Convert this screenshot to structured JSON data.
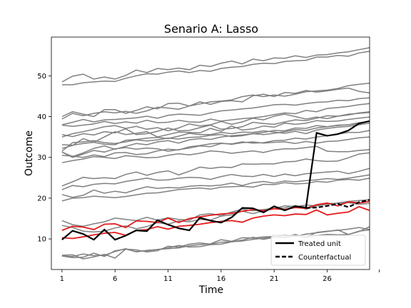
{
  "chart_data": {
    "type": "line",
    "title": "Senario A: Lasso",
    "xlabel": "Time",
    "ylabel": "Outcome",
    "xlim": [
      0,
      30
    ],
    "ylim": [
      2.5,
      59.5
    ],
    "xticks": [
      1,
      6,
      11,
      16,
      21,
      26
    ],
    "yticks": [
      10,
      20,
      30,
      40,
      50
    ],
    "legend": {
      "location": "lower right",
      "entries": [
        {
          "label": "Treated unit",
          "style": "solid",
          "color": "#000000"
        },
        {
          "label": "Counterfactual",
          "style": "dashed",
          "color": "#000000"
        }
      ]
    },
    "colors": {
      "controls": "#808080",
      "treated_pre": "#e31a1c",
      "treated": "#000000"
    },
    "x": [
      1,
      2,
      3,
      4,
      5,
      6,
      7,
      8,
      9,
      10,
      11,
      12,
      13,
      14,
      15,
      16,
      17,
      18,
      19,
      20,
      21,
      22,
      23,
      24,
      25,
      26,
      27,
      28,
      29,
      30
    ],
    "treated_unit": [
      9.8,
      12.0,
      11.2,
      9.8,
      12.3,
      9.8,
      10.8,
      12.1,
      11.9,
      14.6,
      13.5,
      12.6,
      12.1,
      15.2,
      14.5,
      14.0,
      15.3,
      17.6,
      17.5,
      16.5,
      18.0,
      17.0,
      18.0,
      17.7,
      36.0,
      35.3,
      35.7,
      36.6,
      38.3,
      38.9
    ],
    "counterfactual": [
      null,
      null,
      null,
      null,
      null,
      null,
      null,
      null,
      null,
      null,
      null,
      null,
      null,
      null,
      null,
      null,
      null,
      null,
      null,
      null,
      null,
      null,
      null,
      17.6,
      17.7,
      18.1,
      18.6,
      17.8,
      19.0,
      19.6
    ],
    "red_series": [
      [
        12.1,
        13.1,
        12.9,
        12.3,
        13.6,
        13.7,
        12.8,
        14.4,
        14.3,
        14.0,
        15.1,
        14.0,
        15.0,
        15.4,
        15.8,
        16.1,
        16.3,
        16.8,
        17.2,
        16.9,
        17.4,
        17.2,
        17.7,
        17.5,
        18.4,
        18.8,
        18.1,
        19.1,
        18.8,
        19.2
      ],
      [
        10.3,
        10.1,
        10.5,
        11.0,
        11.4,
        11.6,
        10.9,
        12.1,
        12.3,
        13.0,
        12.4,
        13.1,
        13.3,
        13.6,
        14.0,
        14.3,
        14.5,
        14.1,
        15.1,
        15.6,
        15.9,
        15.7,
        16.1,
        16.0,
        17.1,
        15.9,
        16.3,
        16.6,
        17.9,
        17.0
      ]
    ],
    "control_series": [
      [
        48.5,
        49.9,
        50.4,
        49.2,
        49.7,
        49.2,
        50.1,
        51.4,
        50.8,
        51.8,
        51.5,
        51.9,
        51.5,
        52.6,
        52.3,
        53.1,
        53.6,
        52.9,
        54.1,
        53.7,
        54.4,
        54.3,
        54.9,
        54.5,
        55.1,
        55.2,
        55.6,
        55.9,
        56.4,
        56.9
      ],
      [
        47.8,
        47.8,
        48.3,
        48.5,
        48.7,
        48.6,
        49.4,
        50.0,
        50.5,
        50.4,
        50.9,
        51.2,
        50.8,
        51.3,
        51.1,
        51.8,
        52.1,
        52.3,
        52.8,
        53.1,
        53.0,
        53.5,
        53.7,
        53.8,
        54.6,
        54.6,
        55.0,
        54.8,
        55.6,
        56.0
      ],
      [
        40.0,
        41.2,
        40.6,
        40.0,
        41.7,
        41.7,
        40.8,
        41.5,
        42.4,
        41.9,
        43.2,
        43.3,
        42.6,
        43.6,
        43.0,
        43.7,
        43.9,
        43.6,
        45.1,
        45.5,
        44.9,
        45.9,
        45.7,
        46.4,
        46.0,
        46.3,
        46.7,
        47.0,
        46.2,
        45.8
      ],
      [
        39.4,
        40.8,
        40.2,
        40.8,
        41.2,
        40.9,
        41.3,
        40.8,
        41.4,
        42.3,
        42.1,
        41.8,
        42.6,
        43.1,
        43.6,
        43.8,
        44.1,
        44.9,
        45.3,
        44.9,
        45.3,
        45.0,
        45.5,
        46.1,
        46.3,
        46.5,
        46.9,
        47.6,
        47.9,
        48.2
      ],
      [
        38.0,
        38.6,
        39.3,
        38.7,
        39.2,
        39.3,
        39.5,
        39.7,
        40.1,
        39.6,
        40.3,
        40.6,
        40.5,
        40.3,
        40.9,
        41.4,
        41.6,
        41.9,
        42.1,
        42.5,
        42.9,
        43.0,
        42.8,
        43.2,
        43.5,
        43.6,
        44.0,
        43.9,
        44.4,
        44.6
      ],
      [
        37.9,
        37.6,
        37.9,
        38.2,
        38.8,
        38.3,
        38.7,
        38.4,
        39.1,
        38.5,
        38.6,
        39.1,
        38.7,
        38.6,
        39.4,
        38.9,
        39.2,
        39.5,
        39.7,
        40.0,
        40.5,
        40.9,
        40.7,
        41.5,
        41.2,
        42.0,
        42.2,
        42.5,
        42.9,
        43.2
      ],
      [
        35.6,
        35.1,
        35.8,
        35.5,
        36.3,
        36.0,
        37.0,
        35.6,
        35.8,
        36.4,
        37.2,
        36.5,
        36.6,
        37.3,
        37.9,
        36.9,
        37.1,
        37.5,
        38.6,
        38.3,
        38.1,
        38.7,
        39.2,
        39.0,
        39.6,
        40.2,
        40.1,
        40.4,
        40.9,
        41.2
      ],
      [
        35.0,
        35.8,
        36.3,
        36.9,
        37.5,
        37.8,
        37.1,
        37.6,
        36.9,
        37.3,
        36.5,
        37.2,
        38.2,
        37.7,
        38.0,
        38.8,
        38.1,
        38.7,
        39.6,
        39.2,
        40.1,
        40.6,
        40.0,
        39.4,
        39.9,
        39.5,
        40.1,
        40.6,
        40.8,
        41.0
      ],
      [
        32.2,
        32.9,
        34.6,
        33.7,
        35.0,
        36.3,
        35.6,
        35.9,
        36.3,
        35.0,
        35.6,
        36.2,
        36.1,
        36.0,
        37.1,
        36.4,
        37.7,
        36.7,
        37.0,
        37.7,
        37.4,
        38.4,
        38.1,
        38.4,
        39.0,
        38.8,
        38.9,
        39.3,
        39.6,
        39.9
      ],
      [
        31.5,
        33.6,
        33.8,
        34.1,
        33.6,
        33.4,
        33.8,
        34.3,
        34.0,
        34.3,
        34.7,
        34.5,
        34.9,
        35.0,
        35.4,
        35.6,
        35.1,
        35.3,
        35.8,
        36.1,
        36.6,
        36.5,
        37.2,
        37.1,
        37.8,
        37.5,
        37.9,
        38.0,
        38.5,
        38.8
      ],
      [
        31.3,
        30.2,
        31.1,
        32.2,
        32.8,
        32.0,
        32.7,
        33.4,
        33.1,
        33.8,
        34.1,
        33.5,
        34.3,
        34.6,
        34.4,
        35.0,
        35.3,
        35.5,
        35.8,
        35.6,
        35.9,
        36.3,
        36.8,
        36.6,
        37.2,
        37.5,
        37.8,
        38.0,
        38.3,
        38.8
      ],
      [
        33.1,
        33.0,
        33.4,
        33.7,
        33.2,
        33.1,
        34.2,
        34.4,
        34.7,
        34.9,
        34.6,
        35.2,
        35.9,
        35.6,
        35.6,
        36.1,
        35.8,
        36.2,
        36.1,
        36.5,
        36.2,
        35.9,
        36.4,
        35.8,
        36.7,
        37.1,
        37.4,
        37.6,
        38.0,
        38.4
      ],
      [
        31.3,
        30.0,
        30.8,
        31.7,
        31.3,
        32.1,
        32.4,
        32.0,
        32.3,
        32.1,
        31.5,
        31.9,
        32.3,
        32.8,
        32.6,
        33.4,
        33.3,
        33.8,
        33.5,
        33.6,
        34.1,
        34.2,
        34.7,
        34.5,
        35.0,
        35.3,
        35.7,
        36.1,
        36.1,
        36.6
      ],
      [
        30.5,
        30.3,
        30.0,
        30.6,
        30.2,
        31.1,
        31.2,
        30.7,
        30.9,
        31.6,
        32.0,
        31.8,
        32.6,
        32.9,
        33.3,
        33.5,
        33.2,
        33.6,
        33.8,
        33.5,
        33.7,
        33.8,
        33.4,
        33.9,
        33.5,
        33.9,
        34.0,
        34.4,
        34.8,
        35.0
      ],
      [
        28.7,
        29.2,
        29.6,
        30.2,
        30.0,
        29.7,
        30.4,
        30.2,
        29.9,
        30.0,
        30.5,
        30.9,
        30.6,
        31.0,
        31.6,
        31.4,
        31.0,
        31.3,
        31.6,
        31.2,
        31.8,
        32.1,
        32.1,
        32.4,
        32.7,
        31.5,
        31.4,
        31.4,
        31.7,
        31.9
      ],
      [
        23.0,
        24.0,
        25.1,
        24.8,
        25.0,
        24.8,
        25.8,
        26.4,
        25.6,
        26.3,
        26.7,
        25.7,
        26.6,
        27.6,
        27.3,
        27.6,
        27.5,
        28.4,
        28.3,
        28.4,
        28.4,
        28.9,
        29.0,
        29.6,
        29.2,
        29.0,
        29.1,
        29.9,
        30.8,
        31.1
      ],
      [
        22.1,
        23.1,
        22.8,
        23.4,
        23.6,
        23.5,
        24.1,
        24.5,
        24.9,
        24.4,
        24.5,
        24.9,
        25.1,
        25.0,
        24.6,
        25.3,
        25.8,
        25.4,
        25.3,
        25.8,
        25.3,
        25.9,
        25.5,
        26.0,
        26.2,
        26.4,
        26.6,
        26.0,
        26.6,
        27.3
      ],
      [
        20.9,
        20.2,
        20.7,
        22.0,
        21.2,
        21.7,
        21.3,
        22.1,
        22.8,
        22.4,
        22.6,
        22.5,
        22.9,
        23.1,
        23.0,
        23.2,
        23.7,
        23.1,
        23.8,
        24.1,
        23.7,
        24.2,
        24.0,
        24.3,
        24.5,
        24.8,
        24.6,
        24.9,
        25.3,
        25.7
      ],
      [
        19.3,
        20.0,
        20.1,
        20.5,
        20.3,
        20.1,
        20.4,
        20.8,
        21.2,
        21.3,
        21.7,
        22.1,
        22.3,
        22.5,
        22.2,
        22.7,
        22.8,
        22.9,
        22.7,
        23.4,
        23.3,
        23.8,
        23.5,
        23.6,
        24.1,
        23.9,
        24.4,
        24.6,
        24.4,
        24.9
      ],
      [
        14.5,
        13.5,
        13.1,
        13.7,
        14.2,
        15.1,
        14.8,
        14.5,
        15.3,
        14.6,
        15.2,
        14.8,
        14.6,
        15.9,
        16.2,
        15.7,
        16.6,
        17.3,
        16.9,
        17.2,
        17.5,
        18.1,
        17.9,
        18.3,
        18.1,
        18.5,
        18.8,
        19.2,
        19.4,
        19.6
      ],
      [
        13.3,
        12.8,
        11.9,
        11.7,
        11.9,
        12.7,
        13.2,
        12.5,
        13.0,
        14.0,
        13.6,
        14.4,
        14.2,
        14.8,
        14.6,
        15.6,
        15.9,
        16.8,
        16.2,
        16.9,
        17.5,
        17.6,
        18.2,
        17.3,
        18.1,
        18.7,
        18.7,
        18.9,
        18.5,
        18.7
      ],
      [
        6.0,
        6.1,
        5.1,
        5.6,
        6.2,
        5.3,
        7.5,
        7.3,
        6.8,
        7.1,
        8.2,
        8.0,
        8.7,
        9.0,
        8.7,
        9.2,
        9.3,
        9.7,
        10.4,
        9.9,
        10.4,
        10.9,
        10.6,
        11.2,
        11.5,
        11.8,
        12.2,
        11.1,
        11.8,
        13.0
      ],
      [
        5.8,
        5.7,
        6.3,
        5.9,
        6.0,
        6.9,
        7.6,
        6.8,
        7.2,
        7.4,
        7.6,
        7.8,
        8.3,
        8.6,
        8.8,
        9.8,
        9.4,
        10.3,
        10.2,
        10.5,
        10.6,
        10.4,
        11.1,
        10.3,
        10.8,
        11.1,
        11.0,
        11.1,
        11.9,
        12.2
      ],
      [
        5.8,
        5.4,
        5.5,
        6.5,
        5.7,
        7.1,
        7.5,
        6.9,
        7.1,
        7.4,
        7.8,
        8.4,
        8.0,
        8.1,
        8.6,
        8.7,
        9.3,
        9.5,
        9.9,
        10.2,
        10.5,
        10.3,
        10.8,
        10.4,
        11.6,
        11.9,
        12.1,
        12.4,
        12.8,
        12.3
      ]
    ]
  }
}
